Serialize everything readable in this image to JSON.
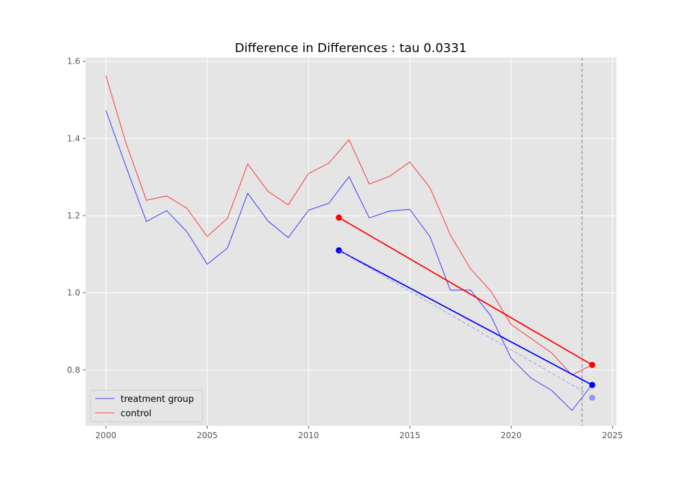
{
  "chart_data": {
    "type": "line",
    "title": "Difference in Differences : tau 0.0331",
    "xlabel": "",
    "ylabel": "",
    "xlim": [
      1999,
      2025.2
    ],
    "ylim": [
      0.655,
      1.61
    ],
    "x_ticks": [
      2000,
      2005,
      2010,
      2015,
      2020,
      2025
    ],
    "y_ticks": [
      0.8,
      1.0,
      1.2,
      1.4,
      1.6
    ],
    "x_tick_labels": [
      "2000",
      "2005",
      "2010",
      "2015",
      "2020",
      "2025"
    ],
    "y_tick_labels": [
      "0.8",
      "1.0",
      "1.2",
      "1.4",
      "1.6"
    ],
    "grid": true,
    "legend_position": "lower-left",
    "x": [
      2000,
      2001,
      2002,
      2003,
      2004,
      2005,
      2006,
      2007,
      2008,
      2009,
      2010,
      2011,
      2012,
      2013,
      2014,
      2015,
      2016,
      2017,
      2018,
      2019,
      2020,
      2021,
      2022,
      2023,
      2024
    ],
    "series": [
      {
        "name": "treatment group",
        "color": "#0000ff",
        "values": [
          1.473,
          1.326,
          1.185,
          1.213,
          1.158,
          1.074,
          1.116,
          1.258,
          1.186,
          1.143,
          1.214,
          1.232,
          1.301,
          1.194,
          1.212,
          1.216,
          1.145,
          1.007,
          1.007,
          0.94,
          0.83,
          0.778,
          0.747,
          0.695,
          0.762
        ]
      },
      {
        "name": "control",
        "color": "#ff0000",
        "values": [
          1.563,
          1.387,
          1.24,
          1.251,
          1.219,
          1.146,
          1.193,
          1.334,
          1.263,
          1.228,
          1.309,
          1.336,
          1.397,
          1.282,
          1.302,
          1.339,
          1.272,
          1.15,
          1.062,
          1.004,
          0.918,
          0.881,
          0.844,
          0.787,
          0.813
        ]
      }
    ],
    "diff_lines": [
      {
        "role": "control-trend",
        "color": "#ff0000",
        "x": [
          2011.5,
          2024
        ],
        "y": [
          1.195,
          0.813
        ]
      },
      {
        "role": "treatment-trend",
        "color": "#0000ff",
        "x": [
          2011.5,
          2024
        ],
        "y": [
          1.11,
          0.761
        ]
      },
      {
        "role": "counterfactual",
        "color": "#8080ff",
        "x": [
          2011.5,
          2023.7
        ],
        "y": [
          1.11,
          0.74
        ]
      }
    ],
    "counterfactual_point": {
      "x": 2024,
      "y": 0.728,
      "color": "#8080ff"
    },
    "treatment_time": 2023.5
  }
}
